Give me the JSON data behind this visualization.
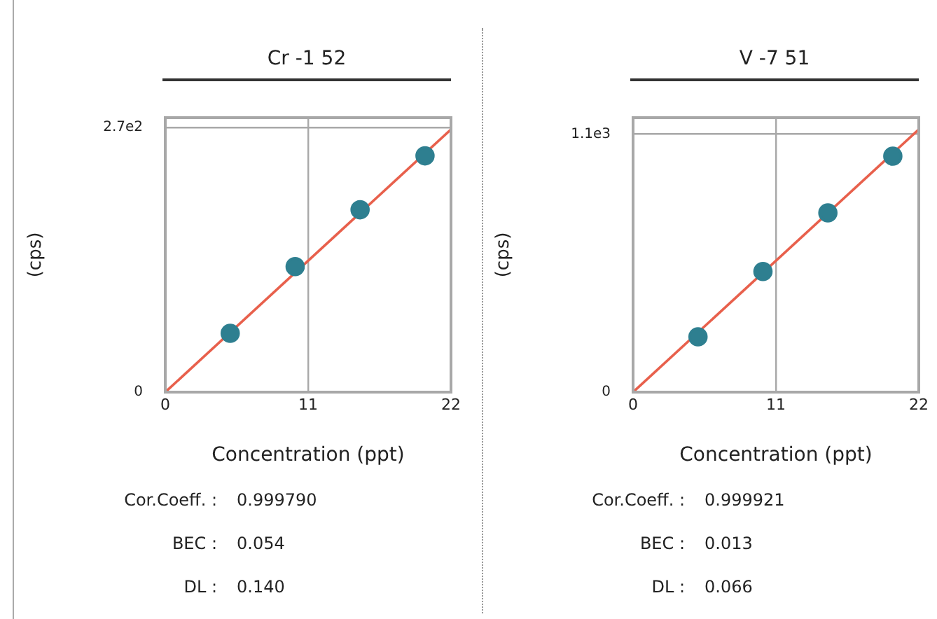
{
  "chart_data": [
    {
      "type": "scatter",
      "title": "Cr -1 52",
      "xlabel": "Concentration (ppt)",
      "ylabel": "(cps)",
      "marker": "circle",
      "grid": true,
      "legend": false,
      "xlim": [
        0,
        22
      ],
      "xticks": [
        0,
        11,
        22
      ],
      "ylim": [
        0,
        280
      ],
      "yticks": [
        0,
        {
          "value": 270,
          "label": "2.7e2"
        }
      ],
      "series": [
        {
          "type": "line",
          "x": [
            0,
            22
          ],
          "values": [
            0,
            268
          ],
          "color": "#e8604c",
          "marker": "none"
        },
        {
          "x": [
            5,
            10,
            15,
            20
          ],
          "values": [
            60,
            128,
            186,
            241
          ],
          "color": "#2e7f90"
        }
      ],
      "annotations": [
        "Cor.Coeff. : 0.999790",
        "BEC : 0.054",
        "DL : 0.140"
      ]
    },
    {
      "type": "scatter",
      "title": "V -7 51",
      "xlabel": "Concentration (ppt)",
      "ylabel": "(cps)",
      "marker": "circle",
      "grid": true,
      "legend": false,
      "xlim": [
        0,
        22
      ],
      "xticks": [
        0,
        11,
        22
      ],
      "ylim": [
        0,
        1170
      ],
      "yticks": [
        0,
        {
          "value": 1100,
          "label": "1.1e3"
        }
      ],
      "series": [
        {
          "type": "line",
          "x": [
            0,
            22
          ],
          "values": [
            0,
            1120
          ],
          "color": "#e8604c",
          "marker": "none"
        },
        {
          "x": [
            5,
            10,
            15,
            20
          ],
          "values": [
            236,
            514,
            764,
            1006
          ],
          "color": "#2e7f90"
        }
      ],
      "annotations": [
        "Cor.Coeff. : 0.999921",
        "BEC : 0.013",
        "DL : 0.066"
      ]
    }
  ]
}
